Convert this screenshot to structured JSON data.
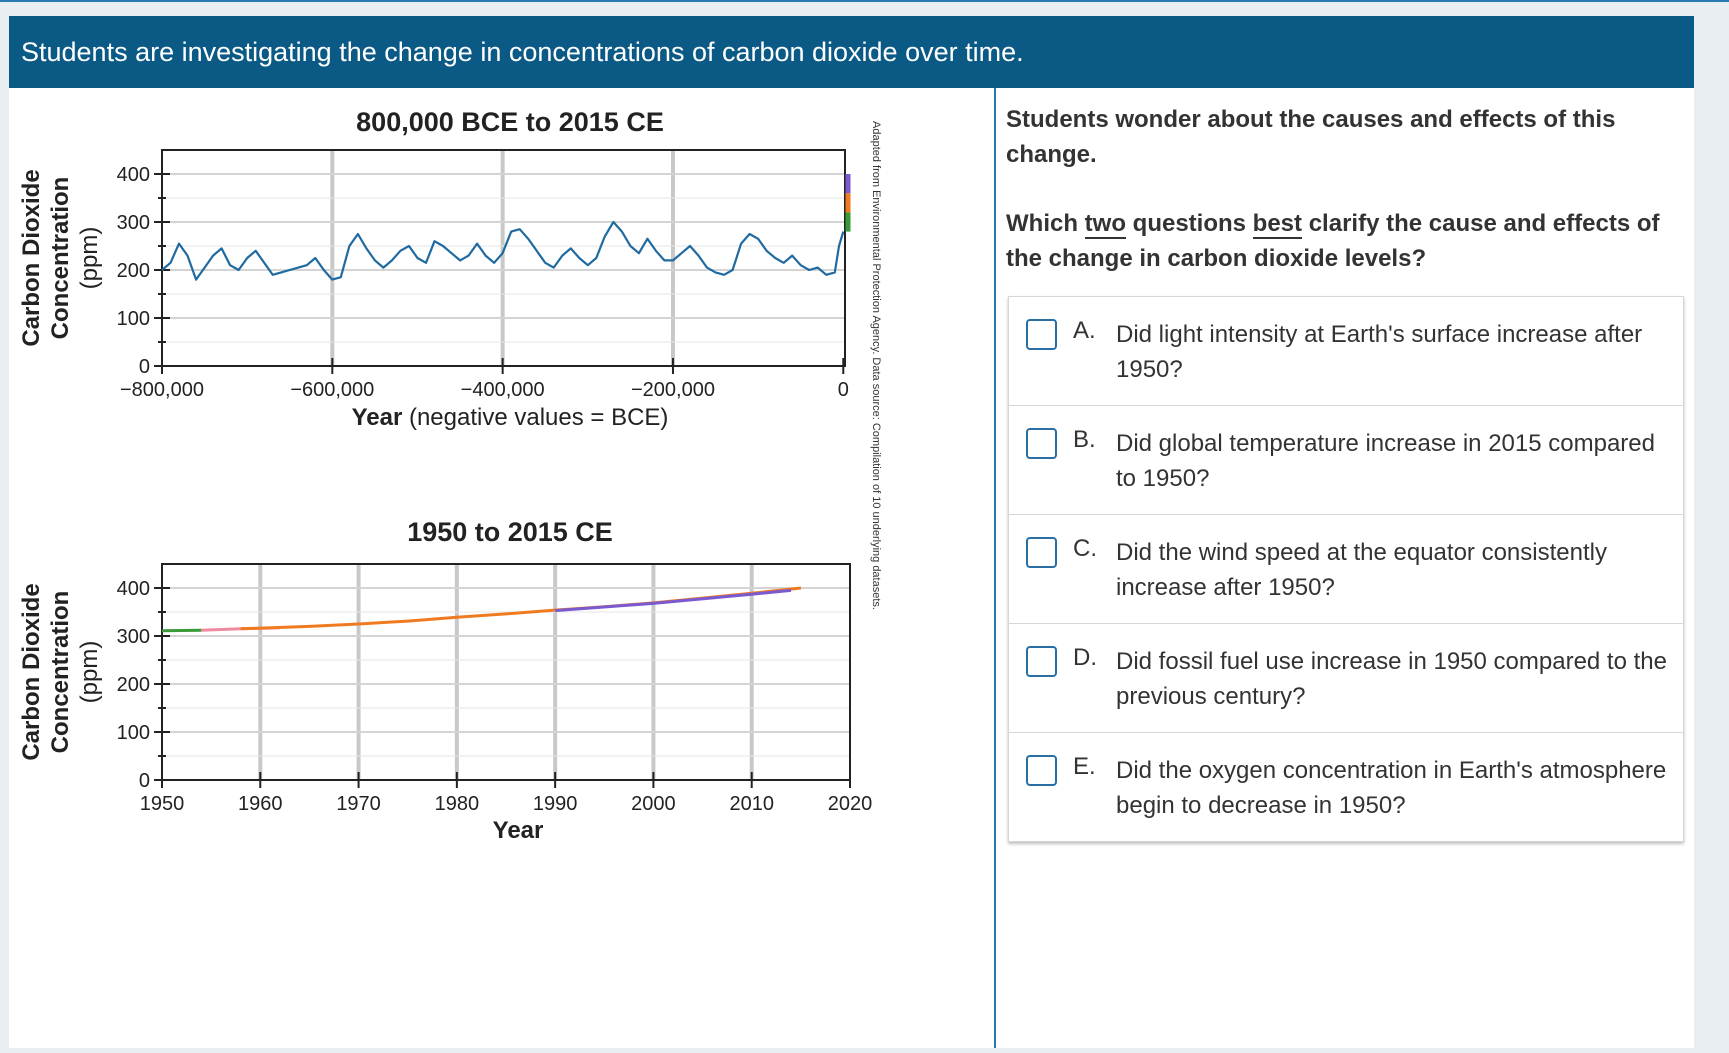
{
  "banner": {
    "title": "Students are investigating the change in concentrations of carbon dioxide over time."
  },
  "intro": "Students wonder about the causes and effects of this change.",
  "question": {
    "part1": "Which ",
    "two": "two",
    "part2": " questions ",
    "best": "best",
    "part3": " clarify the cause and effects of the change in carbon dioxide levels?"
  },
  "choices": [
    {
      "letter": "A.",
      "text": "Did light intensity at Earth's surface increase after 1950?"
    },
    {
      "letter": "B.",
      "text": "Did global temperature increase in 2015 compared to 1950?"
    },
    {
      "letter": "C.",
      "text": "Did the wind speed at the equator consistently increase after 1950?"
    },
    {
      "letter": "D.",
      "text": "Did fossil fuel use increase in 1950 compared to the previous century?"
    },
    {
      "letter": "E.",
      "text": "Did the oxygen concentration in Earth's atmosphere begin to decrease in 1950?"
    }
  ],
  "source_note": "Adapted from Environmental Protection Agency. Data source: Compilation of 10 underlying datasets.",
  "colors": {
    "banner": "#0b5a86",
    "series": "#1f6aa0",
    "checkbox": "#2a6fa3"
  },
  "chart_data": [
    {
      "type": "line",
      "title": "800,000 BCE to 2015 CE",
      "ylabel_lines": [
        "Carbon Dioxide",
        "Concentration",
        "(ppm)"
      ],
      "xlabel_bold": "Year",
      "xlabel_rest": " (negative values = BCE)",
      "xlim": [
        -800000,
        2015
      ],
      "ylim": [
        0,
        450
      ],
      "xticks": [
        -800000,
        -600000,
        -400000,
        -200000,
        0
      ],
      "xtick_labels": [
        "−800,000",
        "−600,000",
        "−400,000",
        "−200,000",
        "0"
      ],
      "yticks": [
        0,
        100,
        200,
        300,
        400
      ],
      "ytick_labels": [
        "0",
        "100",
        "200",
        "300",
        "400"
      ],
      "series": [
        {
          "name": "CO2",
          "x": [
            -800000,
            -790000,
            -780000,
            -770000,
            -760000,
            -750000,
            -740000,
            -730000,
            -720000,
            -710000,
            -700000,
            -690000,
            -680000,
            -670000,
            -660000,
            -650000,
            -640000,
            -630000,
            -620000,
            -610000,
            -600000,
            -590000,
            -580000,
            -570000,
            -560000,
            -550000,
            -540000,
            -530000,
            -520000,
            -510000,
            -500000,
            -490000,
            -480000,
            -470000,
            -460000,
            -450000,
            -440000,
            -430000,
            -420000,
            -410000,
            -400000,
            -390000,
            -380000,
            -370000,
            -360000,
            -350000,
            -340000,
            -330000,
            -320000,
            -310000,
            -300000,
            -290000,
            -280000,
            -270000,
            -260000,
            -250000,
            -240000,
            -230000,
            -220000,
            -210000,
            -200000,
            -190000,
            -180000,
            -170000,
            -160000,
            -150000,
            -140000,
            -130000,
            -120000,
            -110000,
            -100000,
            -90000,
            -80000,
            -70000,
            -60000,
            -50000,
            -40000,
            -30000,
            -20000,
            -10000,
            -5000,
            0
          ],
          "y": [
            200,
            215,
            255,
            230,
            180,
            205,
            230,
            245,
            210,
            200,
            225,
            240,
            215,
            190,
            195,
            200,
            205,
            210,
            225,
            200,
            180,
            185,
            250,
            275,
            245,
            220,
            205,
            220,
            240,
            250,
            225,
            215,
            260,
            250,
            235,
            220,
            230,
            255,
            230,
            215,
            235,
            280,
            285,
            265,
            240,
            215,
            205,
            230,
            245,
            225,
            210,
            225,
            270,
            300,
            280,
            250,
            235,
            265,
            240,
            220,
            220,
            235,
            250,
            230,
            205,
            195,
            190,
            200,
            255,
            275,
            265,
            240,
            225,
            215,
            230,
            210,
            200,
            205,
            190,
            195,
            250,
            280
          ]
        }
      ],
      "recent_segment": {
        "x": [
          2015,
          2015
        ],
        "y": [
          280,
          400
        ]
      }
    },
    {
      "type": "line",
      "title": "1950 to 2015 CE",
      "ylabel_lines": [
        "Carbon Dioxide",
        "Concentration",
        "(ppm)"
      ],
      "xlabel": "Year",
      "xlim": [
        1950,
        2020
      ],
      "ylim": [
        0,
        450
      ],
      "xticks": [
        1950,
        1960,
        1970,
        1980,
        1990,
        2000,
        2010,
        2020
      ],
      "xtick_labels": [
        "1950",
        "1960",
        "1970",
        "1980",
        "1990",
        "2000",
        "2010",
        "2020"
      ],
      "yticks": [
        0,
        100,
        200,
        300,
        400
      ],
      "ytick_labels": [
        "0",
        "100",
        "200",
        "300",
        "400"
      ],
      "series": [
        {
          "name": "dataset-green",
          "color": "#3a9a3a",
          "x": [
            1950,
            1954
          ],
          "y": [
            311,
            312
          ]
        },
        {
          "name": "dataset-pink",
          "color": "#f08aa0",
          "x": [
            1954,
            1958,
            1962
          ],
          "y": [
            312,
            315,
            317
          ]
        },
        {
          "name": "dataset-orange",
          "color": "#f07a20",
          "x": [
            1958,
            1965,
            1970,
            1975,
            1980,
            1985,
            1990,
            1995,
            2000,
            2005,
            2010,
            2015
          ],
          "y": [
            315,
            320,
            325,
            331,
            339,
            346,
            354,
            361,
            369,
            379,
            389,
            400
          ]
        },
        {
          "name": "dataset-purple",
          "color": "#7a5ad0",
          "x": [
            1990,
            2000,
            2010,
            2014
          ],
          "y": [
            353,
            368,
            387,
            395
          ]
        }
      ]
    }
  ]
}
